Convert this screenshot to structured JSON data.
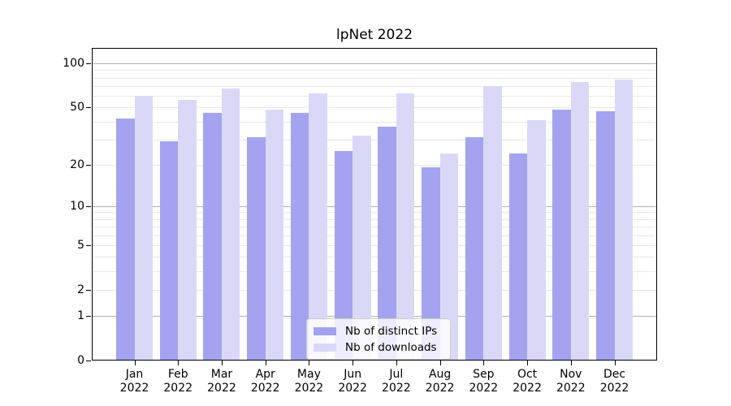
{
  "chart_data": {
    "type": "bar",
    "title": "lpNet 2022",
    "y_scale": "log1p",
    "grid": "on",
    "legend_position": "lower center",
    "categories": [
      "Jan",
      "Feb",
      "Mar",
      "Apr",
      "May",
      "Jun",
      "Jul",
      "Aug",
      "Sep",
      "Oct",
      "Nov",
      "Dec"
    ],
    "year_label": "2022",
    "series": [
      {
        "name": "Nb of distinct IPs",
        "color": "#a3a3f0",
        "values": [
          42,
          29,
          46,
          31,
          46,
          25,
          37,
          19,
          31,
          24,
          48,
          47
        ]
      },
      {
        "name": "Nb of downloads",
        "color": "#d9d9f7",
        "values": [
          60,
          56,
          67,
          48,
          62,
          32,
          62,
          24,
          70,
          41,
          75,
          78
        ]
      }
    ],
    "y_ticks": [
      0,
      1,
      2,
      5,
      10,
      20,
      50,
      100
    ],
    "y_minor_gridlines": [
      2,
      3,
      4,
      5,
      6,
      7,
      8,
      9,
      20,
      30,
      40,
      50,
      60,
      70,
      80,
      90
    ],
    "y_major_gridlines": [
      1,
      10,
      100
    ],
    "ylim": [
      0,
      127
    ]
  }
}
